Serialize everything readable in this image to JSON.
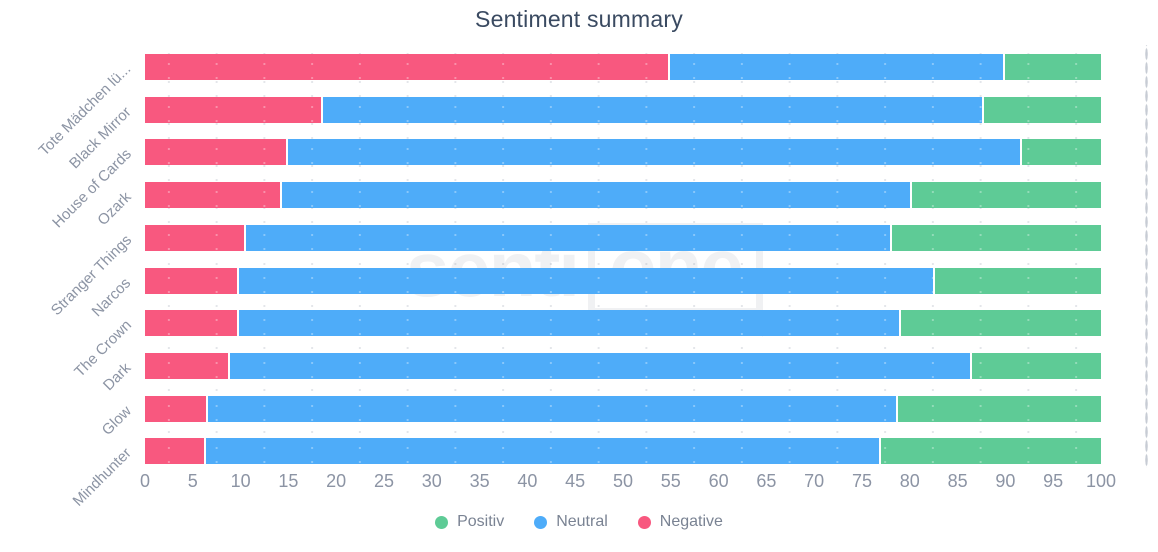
{
  "title": "Sentiment summary",
  "watermark": {
    "part1": "senti",
    "part2": "one"
  },
  "colors": {
    "positive": "#5ECB96",
    "neutral": "#4EACF9",
    "negative": "#F8587F",
    "title_text": "#3A4A61",
    "axis_text": "#8C94A4",
    "grid_dots": "#C7CCD4"
  },
  "legend": [
    {
      "label": "Positiv",
      "color": "#5ECB96"
    },
    {
      "label": "Neutral",
      "color": "#4EACF9"
    },
    {
      "label": "Negative",
      "color": "#F8587F"
    }
  ],
  "chart_data": {
    "type": "bar",
    "orientation": "horizontal",
    "stacked": true,
    "title": "Sentiment summary",
    "xlabel": "",
    "ylabel": "",
    "xlim": [
      0,
      100
    ],
    "x_ticks": [
      0,
      5,
      10,
      15,
      20,
      25,
      30,
      35,
      40,
      45,
      50,
      55,
      60,
      65,
      70,
      75,
      80,
      85,
      90,
      95,
      100
    ],
    "grid": "dotted-vertical",
    "legend_position": "bottom",
    "categories": [
      "Tote Mädchen lü...",
      "Black Mirror",
      "House of Cards",
      "Ozark",
      "Stranger Things",
      "Narcos",
      "The Crown",
      "Dark",
      "Glow",
      "Mindhunter"
    ],
    "stack_order_left_to_right": [
      "Negative",
      "Neutral",
      "Positiv"
    ],
    "series": [
      {
        "name": "Negative",
        "color": "#F8587F",
        "values": [
          54.7,
          18.4,
          14.7,
          14.1,
          10.4,
          9.6,
          9.6,
          8.7,
          6.4,
          6.2
        ]
      },
      {
        "name": "Neutral",
        "color": "#4EACF9",
        "values": [
          35.0,
          69.2,
          76.8,
          65.9,
          67.5,
          72.8,
          69.3,
          77.6,
          72.2,
          70.6
        ]
      },
      {
        "name": "Positiv",
        "color": "#5ECB96",
        "values": [
          10.3,
          12.4,
          8.5,
          20.0,
          22.1,
          17.6,
          21.1,
          13.7,
          21.4,
          23.2
        ]
      }
    ]
  }
}
